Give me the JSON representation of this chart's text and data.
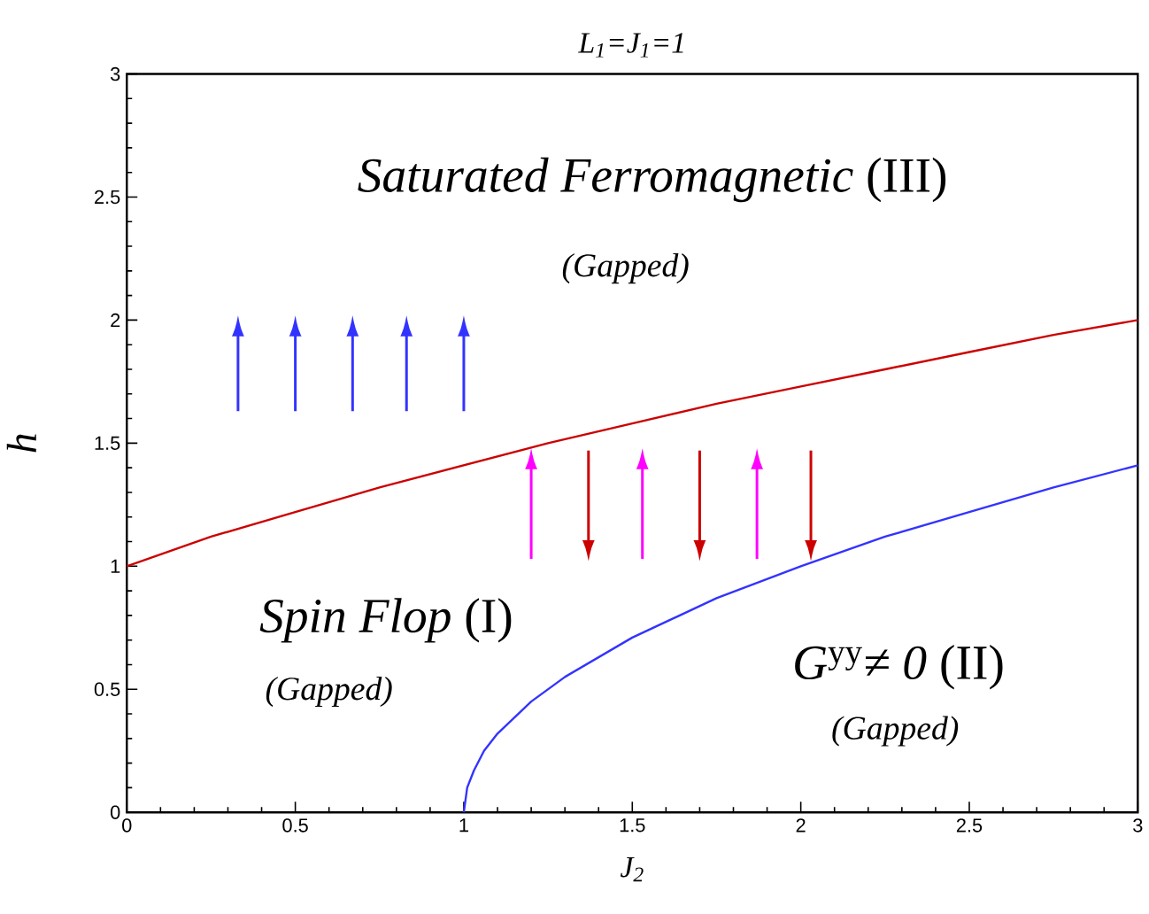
{
  "chart_data": {
    "type": "line",
    "title": "L$_{1}$=J$_{1}$=1",
    "xlabel": "J$_{2}$",
    "ylabel": "h",
    "annotations": [
      "*Saturated Ferromagnetic*  (III)",
      "(Gapped)",
      "*Spin Flop*  (I)",
      "(Gapped)",
      "*G*$^{yy}$*≠ 0*   (II)",
      "(Gapped)"
    ],
    "series": [
      {
        "color": "#cc0000",
        "x": [
          0,
          0.25,
          0.5,
          0.75,
          1,
          1.25,
          1.5,
          1.75,
          2,
          2.25,
          2.5,
          2.75,
          3
        ],
        "values": [
          1,
          1.12,
          1.22,
          1.32,
          1.41,
          1.5,
          1.58,
          1.66,
          1.73,
          1.8,
          1.87,
          1.94,
          2
        ]
      },
      {
        "color": "#3333ff",
        "x": [
          1,
          1.01,
          1.03,
          1.06,
          1.1,
          1.2,
          1.3,
          1.5,
          1.75,
          2,
          2.25,
          2.5,
          2.75,
          3
        ],
        "values": [
          0,
          0.1,
          0.17,
          0.25,
          0.32,
          0.45,
          0.55,
          0.71,
          0.87,
          1,
          1.12,
          1.22,
          1.32,
          1.41
        ]
      }
    ],
    "xlim": [
      0,
      3
    ],
    "ylim": [
      0,
      3
    ],
    "xticks": [
      0,
      0.5,
      1,
      1.5,
      2,
      2.5,
      3
    ],
    "yticks": [
      0,
      0.5,
      1,
      1.5,
      2,
      2.5,
      3
    ]
  }
}
